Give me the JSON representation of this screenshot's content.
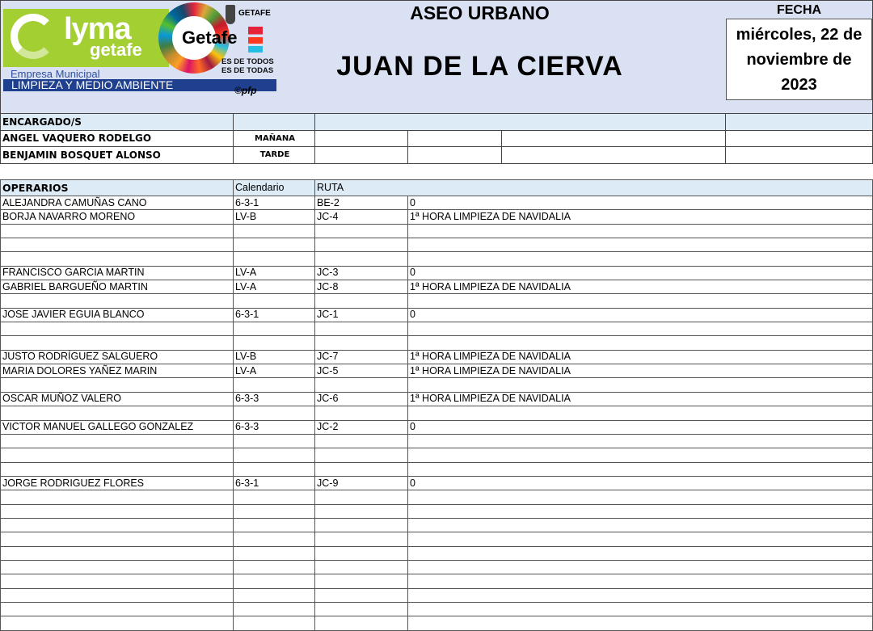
{
  "logo": {
    "brand": "LYMA",
    "brand_sub": "getafe",
    "empresa": "Empresa Municipal",
    "division": "LIMPIEZA Y MEDIO AMBIENTE",
    "city": "Getafe",
    "ayuntamiento": "GETAFE",
    "slogan1": "ES DE TODOS",
    "slogan2": "ES DE TODAS",
    "credit": "©pfp"
  },
  "header": {
    "title": "ASEO URBANO",
    "centro": "JUAN DE LA CIERVA",
    "fecha_label": "FECHA",
    "fecha_line1": "miércoles, 22 de",
    "fecha_line2": "noviembre de",
    "fecha_line3": "2023"
  },
  "encargados": {
    "label": "ENCARGADO/S",
    "rows": [
      {
        "name": "ANGEL VAQUERO RODELGO",
        "turno": "MAÑANA"
      },
      {
        "name": "BENJAMIN BOSQUET ALONSO",
        "turno": "TARDE"
      }
    ]
  },
  "operarios": {
    "label": "OPERARIOS",
    "col_calendario": "Calendario",
    "col_ruta": "RUTA",
    "rows": [
      [
        "ALEJANDRA CAMUÑAS CANO",
        "6-3-1",
        "BE-2",
        "0"
      ],
      [
        "BORJA NAVARRO MORENO",
        "LV-B",
        "JC-4",
        "1ª HORA LIMPIEZA DE NAVIDALIA"
      ],
      [
        "",
        "",
        "",
        ""
      ],
      [
        "",
        "",
        "",
        ""
      ],
      [
        "",
        "",
        "",
        ""
      ],
      [
        "FRANCISCO GARCIA MARTIN",
        "LV-A",
        "JC-3",
        "0"
      ],
      [
        "GABRIEL BARGUEÑO MARTIN",
        "LV-A",
        "JC-8",
        "1ª HORA LIMPIEZA DE NAVIDALIA"
      ],
      [
        "",
        "",
        "",
        ""
      ],
      [
        "JOSE JAVIER EGUIA BLANCO",
        "6-3-1",
        "JC-1",
        "0"
      ],
      [
        "",
        "",
        "",
        ""
      ],
      [
        "",
        "",
        "",
        ""
      ],
      [
        "JUSTO RODRÍGUEZ SALGUERO",
        "LV-B",
        "JC-7",
        "1ª HORA LIMPIEZA DE NAVIDALIA"
      ],
      [
        "MARIA DOLORES YAÑEZ MARIN",
        "LV-A",
        "JC-5",
        "1ª HORA LIMPIEZA DE NAVIDALIA"
      ],
      [
        "",
        "",
        "",
        ""
      ],
      [
        "OSCAR MUÑOZ VALERO",
        "6-3-3",
        "JC-6",
        "1ª HORA LIMPIEZA DE NAVIDALIA"
      ],
      [
        "",
        "",
        "",
        ""
      ],
      [
        "VICTOR MANUEL GALLEGO GONZALEZ",
        "6-3-3",
        "JC-2",
        "0"
      ],
      [
        "",
        "",
        "",
        ""
      ],
      [
        "",
        "",
        "",
        ""
      ],
      [
        "",
        "",
        "",
        ""
      ],
      [
        "JORGE RODRIGUEZ FLORES",
        "6-3-1",
        "JC-9",
        "0"
      ],
      [
        "",
        "",
        "",
        ""
      ],
      [
        "",
        "",
        "",
        ""
      ],
      [
        "",
        "",
        "",
        ""
      ],
      [
        "",
        "",
        "",
        ""
      ],
      [
        "",
        "",
        "",
        ""
      ],
      [
        "",
        "",
        "",
        ""
      ],
      [
        "",
        "",
        "",
        ""
      ],
      [
        "",
        "",
        "",
        ""
      ],
      [
        "",
        "",
        "",
        ""
      ],
      [
        "",
        "",
        "",
        ""
      ]
    ]
  },
  "colors": {
    "header_bg": "#d9e1f2",
    "row_header_bg": "#ddebf7",
    "brand_green": "#a4cf33",
    "brand_blue": "#1f3f8f"
  }
}
